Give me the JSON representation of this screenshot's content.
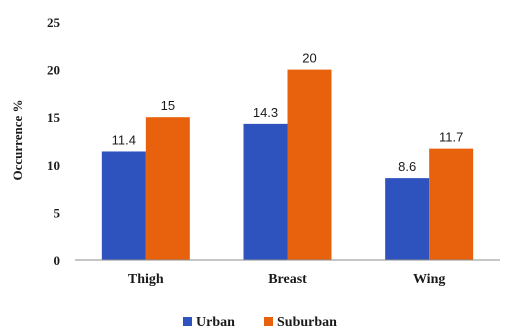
{
  "chart_data": {
    "type": "bar",
    "title": "",
    "xlabel": "",
    "ylabel": "Occurrence %",
    "ylim": [
      0,
      25
    ],
    "yticks": [
      0,
      5,
      10,
      15,
      20,
      25
    ],
    "categories": [
      "Thigh",
      "Breast",
      "Wing"
    ],
    "series": [
      {
        "name": "Urban",
        "values": [
          11.4,
          14.3,
          8.6
        ],
        "color": "#2e52be"
      },
      {
        "name": "Suburban",
        "values": [
          15,
          20,
          11.7
        ],
        "color": "#e8620e"
      }
    ],
    "data_labels": [
      [
        "11.4",
        "14.3",
        "8.6"
      ],
      [
        "15",
        "20",
        "11.7"
      ]
    ],
    "grid": false,
    "legend": "bottom"
  }
}
